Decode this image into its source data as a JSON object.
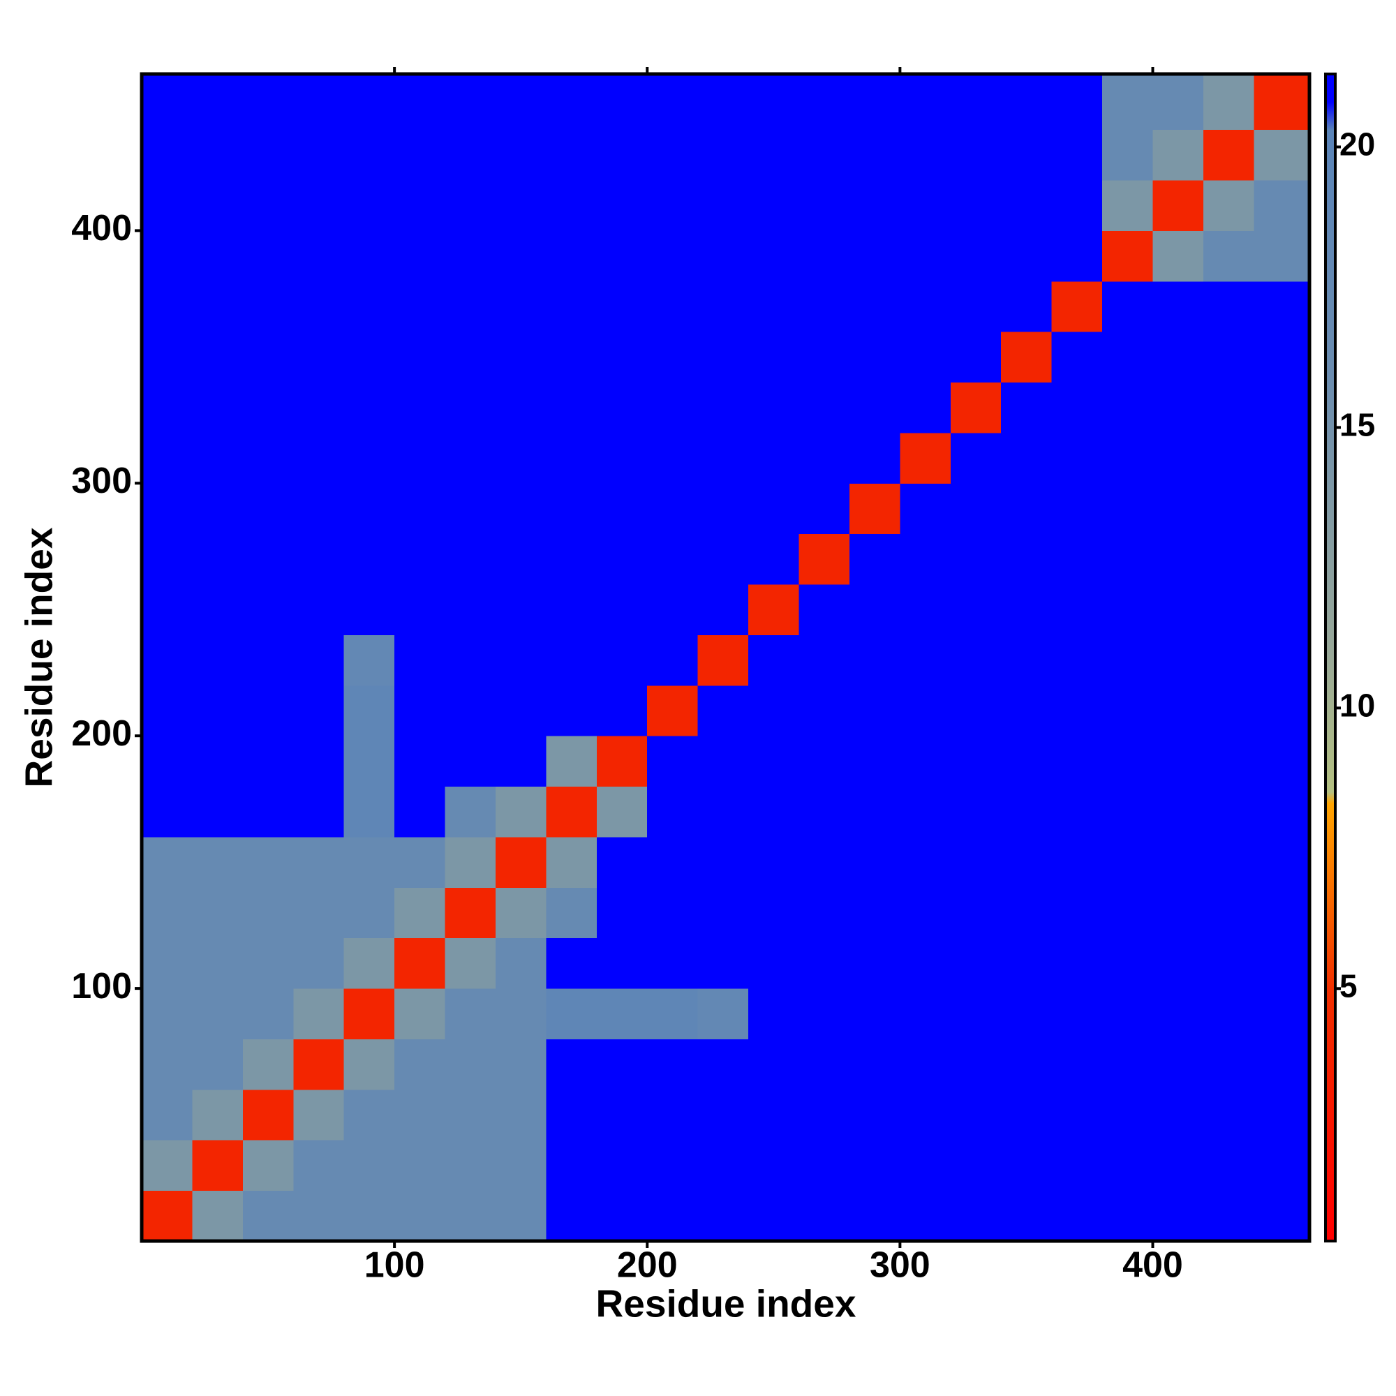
{
  "chart_data": {
    "type": "heatmap",
    "xlabel": "Residue index",
    "ylabel": "Residue index",
    "xbins": [
      0,
      20,
      40,
      60,
      80,
      100,
      120,
      140,
      160,
      180,
      200,
      220,
      240,
      260,
      280,
      300,
      320,
      340,
      360,
      380,
      400,
      420,
      440,
      462
    ],
    "ybins": [
      0,
      20,
      40,
      60,
      80,
      100,
      120,
      140,
      160,
      180,
      200,
      220,
      240,
      260,
      280,
      300,
      320,
      340,
      360,
      380,
      400,
      420,
      440,
      462
    ],
    "z": [
      [
        4,
        14,
        17,
        17,
        17,
        17,
        17,
        17,
        21,
        21,
        21,
        21,
        21,
        21,
        21,
        21,
        21,
        21,
        21,
        21,
        21,
        21,
        21
      ],
      [
        14,
        4,
        14,
        17,
        17,
        17,
        17,
        17,
        21,
        21,
        21,
        21,
        21,
        21,
        21,
        21,
        21,
        21,
        21,
        21,
        21,
        21,
        21
      ],
      [
        17,
        14,
        4,
        14,
        17,
        17,
        17,
        17,
        21,
        21,
        21,
        21,
        21,
        21,
        21,
        21,
        21,
        21,
        21,
        21,
        21,
        21,
        21
      ],
      [
        17,
        17,
        14,
        4,
        14,
        17,
        17,
        17,
        21,
        21,
        21,
        21,
        21,
        21,
        21,
        21,
        21,
        21,
        21,
        21,
        21,
        21,
        21
      ],
      [
        17,
        17,
        17,
        14,
        4,
        14,
        17,
        17,
        19,
        19,
        19,
        18,
        21,
        21,
        21,
        21,
        21,
        21,
        21,
        21,
        21,
        21,
        21
      ],
      [
        17,
        17,
        17,
        17,
        14,
        4,
        14,
        17,
        21,
        21,
        21,
        21,
        21,
        21,
        21,
        21,
        21,
        21,
        21,
        21,
        21,
        21,
        21
      ],
      [
        17,
        17,
        17,
        17,
        17,
        14,
        4,
        14,
        17,
        21,
        21,
        21,
        21,
        21,
        21,
        21,
        21,
        21,
        21,
        21,
        21,
        21,
        21
      ],
      [
        17,
        17,
        17,
        17,
        17,
        17,
        14,
        4,
        14,
        21,
        21,
        21,
        21,
        21,
        21,
        21,
        21,
        21,
        21,
        21,
        21,
        21,
        21
      ],
      [
        21,
        21,
        21,
        21,
        19,
        21,
        17,
        14,
        4,
        14,
        21,
        21,
        21,
        21,
        21,
        21,
        21,
        21,
        21,
        21,
        21,
        21,
        21
      ],
      [
        21,
        21,
        21,
        21,
        19,
        21,
        21,
        21,
        14,
        4,
        21,
        21,
        21,
        21,
        21,
        21,
        21,
        21,
        21,
        21,
        21,
        21,
        21
      ],
      [
        21,
        21,
        21,
        21,
        19,
        21,
        21,
        21,
        21,
        21,
        4,
        21,
        21,
        21,
        21,
        21,
        21,
        21,
        21,
        21,
        21,
        21,
        21
      ],
      [
        21,
        21,
        21,
        21,
        18,
        21,
        21,
        21,
        21,
        21,
        21,
        4,
        21,
        21,
        21,
        21,
        21,
        21,
        21,
        21,
        21,
        21,
        21
      ],
      [
        21,
        21,
        21,
        21,
        21,
        21,
        21,
        21,
        21,
        21,
        21,
        21,
        4,
        21,
        21,
        21,
        21,
        21,
        21,
        21,
        21,
        21,
        21
      ],
      [
        21,
        21,
        21,
        21,
        21,
        21,
        21,
        21,
        21,
        21,
        21,
        21,
        21,
        4,
        21,
        21,
        21,
        21,
        21,
        21,
        21,
        21,
        21
      ],
      [
        21,
        21,
        21,
        21,
        21,
        21,
        21,
        21,
        21,
        21,
        21,
        21,
        21,
        21,
        4,
        21,
        21,
        21,
        21,
        21,
        21,
        21,
        21
      ],
      [
        21,
        21,
        21,
        21,
        21,
        21,
        21,
        21,
        21,
        21,
        21,
        21,
        21,
        21,
        21,
        4,
        21,
        21,
        21,
        21,
        21,
        21,
        21
      ],
      [
        21,
        21,
        21,
        21,
        21,
        21,
        21,
        21,
        21,
        21,
        21,
        21,
        21,
        21,
        21,
        21,
        4,
        21,
        21,
        21,
        21,
        21,
        21
      ],
      [
        21,
        21,
        21,
        21,
        21,
        21,
        21,
        21,
        21,
        21,
        21,
        21,
        21,
        21,
        21,
        21,
        21,
        4,
        21,
        21,
        21,
        21,
        21
      ],
      [
        21,
        21,
        21,
        21,
        21,
        21,
        21,
        21,
        21,
        21,
        21,
        21,
        21,
        21,
        21,
        21,
        21,
        21,
        4,
        21,
        21,
        21,
        21
      ],
      [
        21,
        21,
        21,
        21,
        21,
        21,
        21,
        21,
        21,
        21,
        21,
        21,
        21,
        21,
        21,
        21,
        21,
        21,
        21,
        4,
        14,
        17,
        17
      ],
      [
        21,
        21,
        21,
        21,
        21,
        21,
        21,
        21,
        21,
        21,
        21,
        21,
        21,
        21,
        21,
        21,
        21,
        21,
        21,
        14,
        4,
        14,
        17
      ],
      [
        21,
        21,
        21,
        21,
        21,
        21,
        21,
        21,
        21,
        21,
        21,
        21,
        21,
        21,
        21,
        21,
        21,
        21,
        21,
        17,
        14,
        4,
        14
      ],
      [
        21,
        21,
        21,
        21,
        21,
        21,
        21,
        21,
        21,
        21,
        21,
        21,
        21,
        21,
        21,
        21,
        21,
        21,
        21,
        17,
        17,
        14,
        4
      ]
    ],
    "xlim": [
      0,
      462
    ],
    "ylim": [
      0,
      462
    ],
    "xticks": [
      100,
      200,
      300,
      400
    ],
    "yticks": [
      100,
      200,
      300,
      400
    ],
    "clim": [
      0.5,
      21.3
    ],
    "cticks": [
      5,
      10,
      15,
      20
    ],
    "colorscale": [
      [
        0.5,
        "#ff0000"
      ],
      [
        5,
        "#f03000"
      ],
      [
        8.3,
        "#ffa500"
      ],
      [
        8.5,
        "#b4c080"
      ],
      [
        11,
        "#98a898"
      ],
      [
        16,
        "#6a8cb0"
      ],
      [
        20.3,
        "#5a84b8"
      ],
      [
        20.8,
        "#0000ff"
      ]
    ]
  }
}
